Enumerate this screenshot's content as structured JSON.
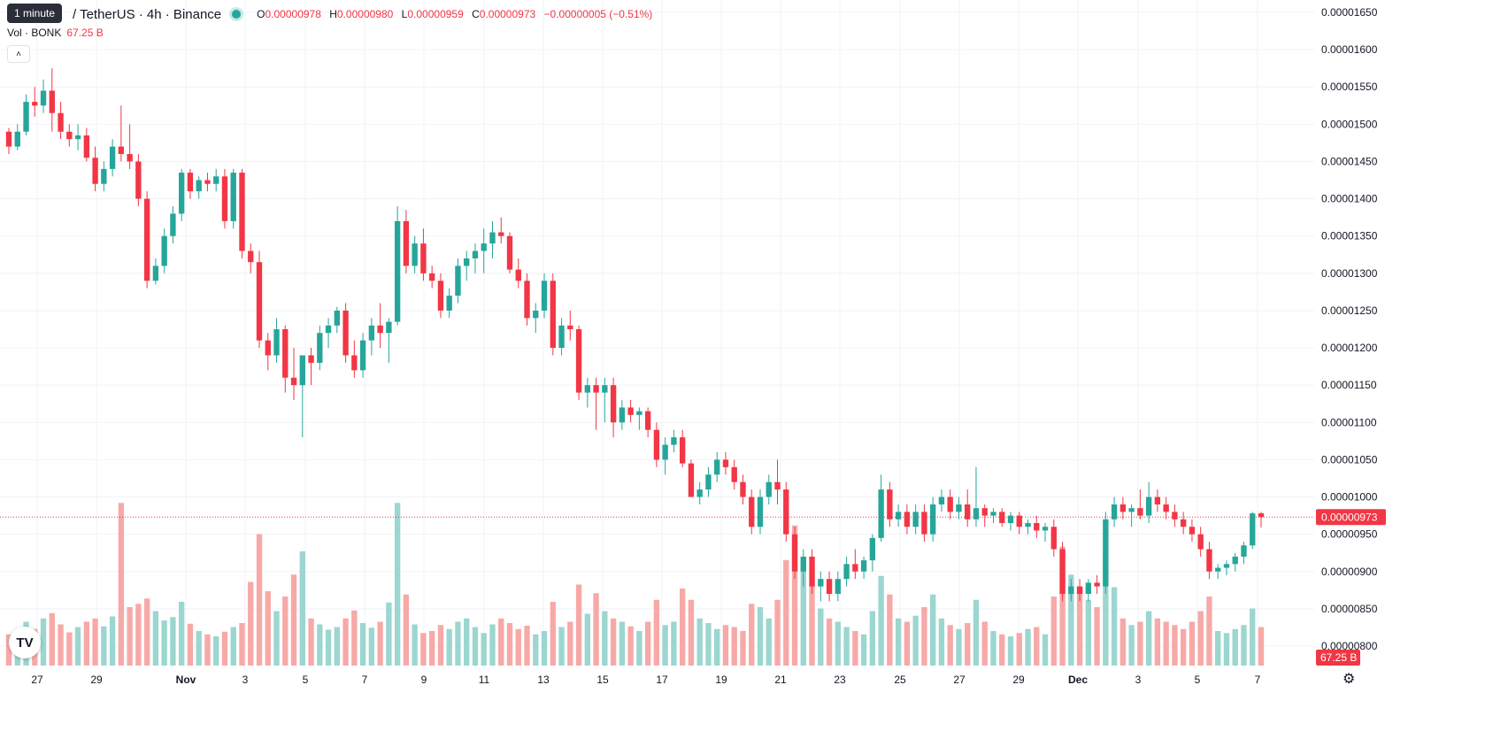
{
  "header": {
    "tooltip": "1 minute",
    "pair": "/ TetherUS · 4h · Binance",
    "open_label": "O",
    "open": "0.00000978",
    "high_label": "H",
    "high": "0.00000980",
    "low_label": "L",
    "low": "0.00000959",
    "close_label": "C",
    "close": "0.00000973",
    "change": "−0.00000005 (−0.51%)"
  },
  "volume_legend": {
    "label": "Vol · BONK",
    "value": "67.25 B"
  },
  "colors": {
    "up": "#26a69a",
    "down": "#f23645",
    "up_vol": "#9cd6d0",
    "down_vol": "#f7a9a7",
    "grid": "#f0f3fa"
  },
  "icons": {
    "logo": "tradingview-logo-icon",
    "settings": "gear-icon",
    "collapse": "chevron-up-icon"
  },
  "chart_data": {
    "type": "candlestick",
    "interval": "4h",
    "grid": true,
    "y_axis": {
      "position": "right",
      "ylim": [
        7.7e-06,
        1.66e-05
      ],
      "ticks": [
        "0.00001650",
        "0.00001600",
        "0.00001550",
        "0.00001500",
        "0.00001450",
        "0.00001400",
        "0.00001350",
        "0.00001300",
        "0.00001250",
        "0.00001200",
        "0.00001150",
        "0.00001100",
        "0.00001050",
        "0.00001000",
        "0.00000950",
        "0.00000900",
        "0.00000850",
        "0.00000800"
      ],
      "tick_values": [
        1.65e-05,
        1.6e-05,
        1.55e-05,
        1.5e-05,
        1.45e-05,
        1.4e-05,
        1.35e-05,
        1.3e-05,
        1.25e-05,
        1.2e-05,
        1.15e-05,
        1.1e-05,
        1.05e-05,
        1e-05,
        9.5e-06,
        9e-06,
        8.5e-06,
        8e-06
      ],
      "last_price_label": "0.00000973",
      "last_price": 9.73e-06,
      "volume_label": "67.25 B"
    },
    "x_axis": {
      "ticks": [
        "27",
        "29",
        "Nov",
        "3",
        "5",
        "7",
        "9",
        "11",
        "13",
        "15",
        "17",
        "19",
        "21",
        "23",
        "25",
        "27",
        "29",
        "Dec",
        "3",
        "5",
        "7"
      ],
      "bold": [
        "Nov",
        "Dec"
      ]
    },
    "candles": [
      [
        1.49e-05,
        1.495e-05,
        1.46e-05,
        1.47e-05,
        0.0047
      ],
      [
        1.47e-05,
        1.5e-05,
        1.465e-05,
        1.49e-05,
        0.0052
      ],
      [
        1.49e-05,
        1.54e-05,
        1.485e-05,
        1.53e-05,
        0.0066
      ],
      [
        1.53e-05,
        1.55e-05,
        1.51e-05,
        1.525e-05,
        0.0055
      ],
      [
        1.525e-05,
        1.56e-05,
        1.515e-05,
        1.545e-05,
        0.0071
      ],
      [
        1.545e-05,
        1.575e-05,
        1.49e-05,
        1.515e-05,
        0.0079
      ],
      [
        1.515e-05,
        1.53e-05,
        1.48e-05,
        1.49e-05,
        0.0062
      ],
      [
        1.49e-05,
        1.5e-05,
        1.47e-05,
        1.48e-05,
        0.005
      ],
      [
        1.48e-05,
        1.5e-05,
        1.465e-05,
        1.485e-05,
        0.0058
      ],
      [
        1.485e-05,
        1.495e-05,
        1.45e-05,
        1.455e-05,
        0.0066
      ],
      [
        1.455e-05,
        1.47e-05,
        1.41e-05,
        1.42e-05,
        0.0071
      ],
      [
        1.42e-05,
        1.45e-05,
        1.41e-05,
        1.44e-05,
        0.0059
      ],
      [
        1.44e-05,
        1.48e-05,
        1.43e-05,
        1.47e-05,
        0.0074
      ],
      [
        1.47e-05,
        1.525e-05,
        1.45e-05,
        1.46e-05,
        0.0245
      ],
      [
        1.46e-05,
        1.5e-05,
        1.44e-05,
        1.45e-05,
        0.0088
      ],
      [
        1.45e-05,
        1.46e-05,
        1.39e-05,
        1.4e-05,
        0.0093
      ],
      [
        1.4e-05,
        1.41e-05,
        1.28e-05,
        1.29e-05,
        0.0101
      ],
      [
        1.29e-05,
        1.32e-05,
        1.285e-05,
        1.31e-05,
        0.0082
      ],
      [
        1.31e-05,
        1.36e-05,
        1.3e-05,
        1.35e-05,
        0.0068
      ],
      [
        1.35e-05,
        1.39e-05,
        1.34e-05,
        1.38e-05,
        0.0073
      ],
      [
        1.38e-05,
        1.44e-05,
        1.37e-05,
        1.435e-05,
        0.0096
      ],
      [
        1.435e-05,
        1.44e-05,
        1.4e-05,
        1.41e-05,
        0.0063
      ],
      [
        1.41e-05,
        1.43e-05,
        1.4e-05,
        1.425e-05,
        0.0052
      ],
      [
        1.425e-05,
        1.435e-05,
        1.41e-05,
        1.42e-05,
        0.0047
      ],
      [
        1.42e-05,
        1.44e-05,
        1.41e-05,
        1.43e-05,
        0.0044
      ],
      [
        1.43e-05,
        1.44e-05,
        1.36e-05,
        1.37e-05,
        0.0051
      ],
      [
        1.37e-05,
        1.44e-05,
        1.36e-05,
        1.435e-05,
        0.0058
      ],
      [
        1.435e-05,
        1.44e-05,
        1.32e-05,
        1.33e-05,
        0.0064
      ],
      [
        1.33e-05,
        1.34e-05,
        1.3e-05,
        1.315e-05,
        0.0126
      ],
      [
        1.315e-05,
        1.33e-05,
        1.2e-05,
        1.21e-05,
        0.0198
      ],
      [
        1.21e-05,
        1.22e-05,
        1.17e-05,
        1.19e-05,
        0.0112
      ],
      [
        1.19e-05,
        1.24e-05,
        1.18e-05,
        1.225e-05,
        0.0082
      ],
      [
        1.225e-05,
        1.23e-05,
        1.14e-05,
        1.16e-05,
        0.0104
      ],
      [
        1.16e-05,
        1.2e-05,
        1.13e-05,
        1.15e-05,
        0.0137
      ],
      [
        1.15e-05,
        1.19e-05,
        1.08e-05,
        1.19e-05,
        0.0172
      ],
      [
        1.19e-05,
        1.2e-05,
        1.15e-05,
        1.18e-05,
        0.0071
      ],
      [
        1.18e-05,
        1.23e-05,
        1.17e-05,
        1.22e-05,
        0.0062
      ],
      [
        1.22e-05,
        1.24e-05,
        1.2e-05,
        1.23e-05,
        0.0054
      ],
      [
        1.23e-05,
        1.255e-05,
        1.22e-05,
        1.25e-05,
        0.0058
      ],
      [
        1.25e-05,
        1.26e-05,
        1.18e-05,
        1.19e-05,
        0.0071
      ],
      [
        1.19e-05,
        1.21e-05,
        1.16e-05,
        1.17e-05,
        0.0083
      ],
      [
        1.17e-05,
        1.22e-05,
        1.16e-05,
        1.21e-05,
        0.0064
      ],
      [
        1.21e-05,
        1.24e-05,
        1.19e-05,
        1.23e-05,
        0.0057
      ],
      [
        1.23e-05,
        1.26e-05,
        1.2e-05,
        1.22e-05,
        0.0066
      ],
      [
        1.22e-05,
        1.24e-05,
        1.18e-05,
        1.235e-05,
        0.0095
      ],
      [
        1.235e-05,
        1.39e-05,
        1.23e-05,
        1.37e-05,
        0.0245
      ],
      [
        1.37e-05,
        1.385e-05,
        1.3e-05,
        1.31e-05,
        0.0107
      ],
      [
        1.31e-05,
        1.35e-05,
        1.3e-05,
        1.34e-05,
        0.0062
      ],
      [
        1.34e-05,
        1.36e-05,
        1.29e-05,
        1.3e-05,
        0.0049
      ],
      [
        1.3e-05,
        1.31e-05,
        1.28e-05,
        1.29e-05,
        0.0052
      ],
      [
        1.29e-05,
        1.3e-05,
        1.24e-05,
        1.25e-05,
        0.0061
      ],
      [
        1.25e-05,
        1.28e-05,
        1.24e-05,
        1.27e-05,
        0.0055
      ],
      [
        1.27e-05,
        1.32e-05,
        1.26e-05,
        1.31e-05,
        0.0066
      ],
      [
        1.31e-05,
        1.33e-05,
        1.29e-05,
        1.32e-05,
        0.0071
      ],
      [
        1.32e-05,
        1.34e-05,
        1.3e-05,
        1.33e-05,
        0.0058
      ],
      [
        1.33e-05,
        1.36e-05,
        1.3e-05,
        1.34e-05,
        0.0049
      ],
      [
        1.34e-05,
        1.37e-05,
        1.32e-05,
        1.355e-05,
        0.0062
      ],
      [
        1.355e-05,
        1.375e-05,
        1.34e-05,
        1.35e-05,
        0.0071
      ],
      [
        1.35e-05,
        1.355e-05,
        1.3e-05,
        1.305e-05,
        0.0064
      ],
      [
        1.305e-05,
        1.32e-05,
        1.28e-05,
        1.29e-05,
        0.0055
      ],
      [
        1.29e-05,
        1.3e-05,
        1.23e-05,
        1.24e-05,
        0.006
      ],
      [
        1.24e-05,
        1.26e-05,
        1.22e-05,
        1.25e-05,
        0.0047
      ],
      [
        1.25e-05,
        1.3e-05,
        1.24e-05,
        1.29e-05,
        0.0052
      ],
      [
        1.29e-05,
        1.3e-05,
        1.19e-05,
        1.2e-05,
        0.0096
      ],
      [
        1.2e-05,
        1.24e-05,
        1.19e-05,
        1.23e-05,
        0.0058
      ],
      [
        1.23e-05,
        1.25e-05,
        1.21e-05,
        1.225e-05,
        0.0066
      ],
      [
        1.225e-05,
        1.23e-05,
        1.13e-05,
        1.14e-05,
        0.0122
      ],
      [
        1.14e-05,
        1.16e-05,
        1.12e-05,
        1.15e-05,
        0.0078
      ],
      [
        1.15e-05,
        1.16e-05,
        1.09e-05,
        1.14e-05,
        0.0109
      ],
      [
        1.14e-05,
        1.16e-05,
        1.1e-05,
        1.15e-05,
        0.0082
      ],
      [
        1.15e-05,
        1.16e-05,
        1.08e-05,
        1.1e-05,
        0.0071
      ],
      [
        1.1e-05,
        1.13e-05,
        1.09e-05,
        1.12e-05,
        0.0066
      ],
      [
        1.12e-05,
        1.13e-05,
        1.1e-05,
        1.11e-05,
        0.0059
      ],
      [
        1.11e-05,
        1.12e-05,
        1.09e-05,
        1.115e-05,
        0.0052
      ],
      [
        1.115e-05,
        1.12e-05,
        1.08e-05,
        1.09e-05,
        0.0066
      ],
      [
        1.09e-05,
        1.1e-05,
        1.04e-05,
        1.05e-05,
        0.0099
      ],
      [
        1.05e-05,
        1.08e-05,
        1.03e-05,
        1.07e-05,
        0.0061
      ],
      [
        1.07e-05,
        1.09e-05,
        1.06e-05,
        1.08e-05,
        0.0066
      ],
      [
        1.08e-05,
        1.09e-05,
        1.04e-05,
        1.045e-05,
        0.0116
      ],
      [
        1.045e-05,
        1.05e-05,
        1e-05,
        1e-05,
        0.0099
      ],
      [
        1e-05,
        1.02e-05,
        9.9e-06,
        1.01e-05,
        0.0071
      ],
      [
        1.01e-05,
        1.04e-05,
        1e-05,
        1.03e-05,
        0.0064
      ],
      [
        1.03e-05,
        1.06e-05,
        1.02e-05,
        1.05e-05,
        0.0055
      ],
      [
        1.05e-05,
        1.06e-05,
        1.03e-05,
        1.04e-05,
        0.0061
      ],
      [
        1.04e-05,
        1.05e-05,
        1.01e-05,
        1.02e-05,
        0.0058
      ],
      [
        1.02e-05,
        1.03e-05,
        9.9e-06,
        1e-05,
        0.0052
      ],
      [
        1e-05,
        1.01e-05,
        9.5e-06,
        9.6e-06,
        0.0093
      ],
      [
        9.6e-06,
        1.01e-05,
        9.5e-06,
        1e-05,
        0.0088
      ],
      [
        1e-05,
        1.03e-05,
        9.9e-06,
        1.02e-05,
        0.0071
      ],
      [
        1.02e-05,
        1.05e-05,
        9.9e-06,
        1.01e-05,
        0.0099
      ],
      [
        1.01e-05,
        1.02e-05,
        9.4e-06,
        9.5e-06,
        0.0159
      ],
      [
        9.5e-06,
        9.6e-06,
        8.9e-06,
        9e-06,
        0.0211
      ],
      [
        9e-06,
        9.3e-06,
        8.8e-06,
        9.2e-06,
        0.0153
      ],
      [
        9.2e-06,
        9.3e-06,
        8.7e-06,
        8.8e-06,
        0.0124
      ],
      [
        8.8e-06,
        9e-06,
        8.6e-06,
        8.9e-06,
        0.0086
      ],
      [
        8.9e-06,
        9e-06,
        8.6e-06,
        8.7e-06,
        0.0071
      ],
      [
        8.7e-06,
        9e-06,
        8.6e-06,
        8.9e-06,
        0.0066
      ],
      [
        8.9e-06,
        9.2e-06,
        8.8e-06,
        9.1e-06,
        0.0058
      ],
      [
        9.1e-06,
        9.3e-06,
        8.9e-06,
        9e-06,
        0.0052
      ],
      [
        9e-06,
        9.2e-06,
        8.9e-06,
        9.15e-06,
        0.0047
      ],
      [
        9.15e-06,
        9.5e-06,
        9e-06,
        9.45e-06,
        0.0082
      ],
      [
        9.45e-06,
        1.03e-05,
        9.4e-06,
        1.01e-05,
        0.0135
      ],
      [
        1.01e-05,
        1.02e-05,
        9.6e-06,
        9.7e-06,
        0.0107
      ],
      [
        9.7e-06,
        9.9e-06,
        9.6e-06,
        9.8e-06,
        0.0071
      ],
      [
        9.8e-06,
        9.9e-06,
        9.5e-06,
        9.6e-06,
        0.0066
      ],
      [
        9.6e-06,
        9.9e-06,
        9.5e-06,
        9.8e-06,
        0.0075
      ],
      [
        9.8e-06,
        9.9e-06,
        9.4e-06,
        9.5e-06,
        0.0088
      ],
      [
        9.5e-06,
        1e-05,
        9.4e-06,
        9.9e-06,
        0.0107
      ],
      [
        9.9e-06,
        1.01e-05,
        9.8e-06,
        1e-05,
        0.0071
      ],
      [
        1e-05,
        1.01e-05,
        9.7e-06,
        9.8e-06,
        0.0061
      ],
      [
        9.8e-06,
        1e-05,
        9.7e-06,
        9.9e-06,
        0.0055
      ],
      [
        9.9e-06,
        1.01e-05,
        9.6e-06,
        9.7e-06,
        0.0064
      ],
      [
        9.7e-06,
        1.04e-05,
        9.6e-06,
        9.85e-06,
        0.0099
      ],
      [
        9.85e-06,
        9.9e-06,
        9.6e-06,
        9.75e-06,
        0.0066
      ],
      [
        9.75e-06,
        9.85e-06,
        9.65e-06,
        9.8e-06,
        0.0052
      ],
      [
        9.8e-06,
        9.85e-06,
        9.6e-06,
        9.65e-06,
        0.0047
      ],
      [
        9.65e-06,
        9.8e-06,
        9.55e-06,
        9.75e-06,
        0.0044
      ],
      [
        9.75e-06,
        9.8e-06,
        9.5e-06,
        9.6e-06,
        0.0049
      ],
      [
        9.6e-06,
        9.7e-06,
        9.5e-06,
        9.65e-06,
        0.0055
      ],
      [
        9.65e-06,
        9.75e-06,
        9.45e-06,
        9.55e-06,
        0.0058
      ],
      [
        9.55e-06,
        9.65e-06,
        9.4e-06,
        9.6e-06,
        0.0047
      ],
      [
        9.6e-06,
        9.7e-06,
        9.2e-06,
        9.3e-06,
        0.0104
      ],
      [
        9.3e-06,
        9.4e-06,
        8.6e-06,
        8.7e-06,
        0.0179
      ],
      [
        8.7e-06,
        8.9e-06,
        8.6e-06,
        8.8e-06,
        0.0137
      ],
      [
        8.8e-06,
        8.9e-06,
        8.6e-06,
        8.7e-06,
        0.0119
      ],
      [
        8.7e-06,
        8.9e-06,
        8.6e-06,
        8.85e-06,
        0.0099
      ],
      [
        8.85e-06,
        8.95e-06,
        8.7e-06,
        8.8e-06,
        0.0088
      ],
      [
        8.8e-06,
        9.8e-06,
        8.7e-06,
        9.7e-06,
        0.0164
      ],
      [
        9.7e-06,
        1e-05,
        9.6e-06,
        9.9e-06,
        0.0118
      ],
      [
        9.9e-06,
        1e-05,
        9.7e-06,
        9.8e-06,
        0.0071
      ],
      [
        9.8e-06,
        9.9e-06,
        9.6e-06,
        9.85e-06,
        0.0061
      ],
      [
        9.85e-06,
        1.01e-05,
        9.7e-06,
        9.75e-06,
        0.0066
      ],
      [
        9.75e-06,
        1.02e-05,
        9.65e-06,
        1e-05,
        0.0082
      ],
      [
        1e-05,
        1.01e-05,
        9.8e-06,
        9.9e-06,
        0.0071
      ],
      [
        9.9e-06,
        1e-05,
        9.7e-06,
        9.8e-06,
        0.0066
      ],
      [
        9.8e-06,
        9.9e-06,
        9.6e-06,
        9.7e-06,
        0.0061
      ],
      [
        9.7e-06,
        9.8e-06,
        9.5e-06,
        9.6e-06,
        0.0055
      ],
      [
        9.6e-06,
        9.7e-06,
        9.4e-06,
        9.5e-06,
        0.0066
      ],
      [
        9.5e-06,
        9.6e-06,
        9.2e-06,
        9.3e-06,
        0.0082
      ],
      [
        9.3e-06,
        9.4e-06,
        8.9e-06,
        9e-06,
        0.0104
      ],
      [
        9e-06,
        9.1e-06,
        8.9e-06,
        9.05e-06,
        0.0052
      ],
      [
        9.05e-06,
        9.15e-06,
        8.95e-06,
        9.1e-06,
        0.0049
      ],
      [
        9.1e-06,
        9.25e-06,
        9e-06,
        9.2e-06,
        0.0055
      ],
      [
        9.2e-06,
        9.4e-06,
        9.1e-06,
        9.35e-06,
        0.0061
      ],
      [
        9.35e-06,
        9.8e-06,
        9.3e-06,
        9.78e-06,
        0.0086
      ],
      [
        9.78e-06,
        9.8e-06,
        9.59e-06,
        9.73e-06,
        0.0058
      ]
    ]
  }
}
